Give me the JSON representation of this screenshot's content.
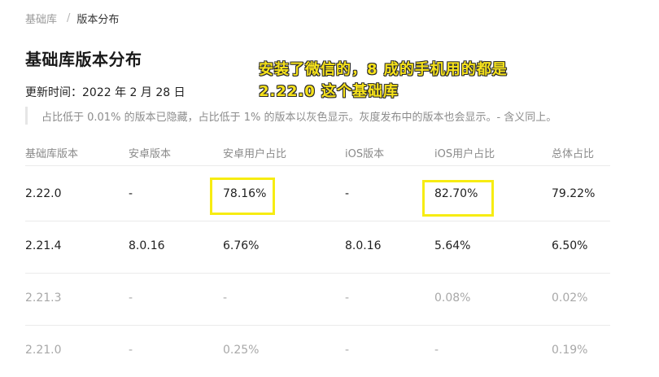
{
  "breadcrumb": {
    "root": "基础库",
    "separator": "/",
    "current": "版本分布"
  },
  "page": {
    "title": "基础库版本分布",
    "updated": "更新时间：2022 年 2 月 28 日",
    "note": "占比低于 0.01% 的版本已隐藏，占比低于 1% 的版本以灰色显示。灰度发布中的版本也会显示。- 含义同上。"
  },
  "annotation": {
    "line1": "安装了微信的，8 成的手机用的都是",
    "line2": "2.22.0 这个基础库"
  },
  "table": {
    "headers": [
      "基础库版本",
      "安卓版本",
      "安卓用户占比",
      "iOS版本",
      "iOS用户占比",
      "总体占比"
    ],
    "rows": [
      [
        "2.22.0",
        "-",
        "78.16%",
        "-",
        "82.70%",
        "79.22%"
      ],
      [
        "2.21.4",
        "8.0.16",
        "6.76%",
        "8.0.16",
        "5.64%",
        "6.50%"
      ],
      [
        "2.21.3",
        "-",
        "-",
        "-",
        "0.08%",
        "0.02%"
      ],
      [
        "2.21.0",
        "-",
        "0.25%",
        "-",
        "-",
        "0.19%"
      ]
    ]
  },
  "colors": {
    "highlight": "#f7ec12",
    "annotation_text": "#f6e21b",
    "muted": "#a8a8a8"
  }
}
